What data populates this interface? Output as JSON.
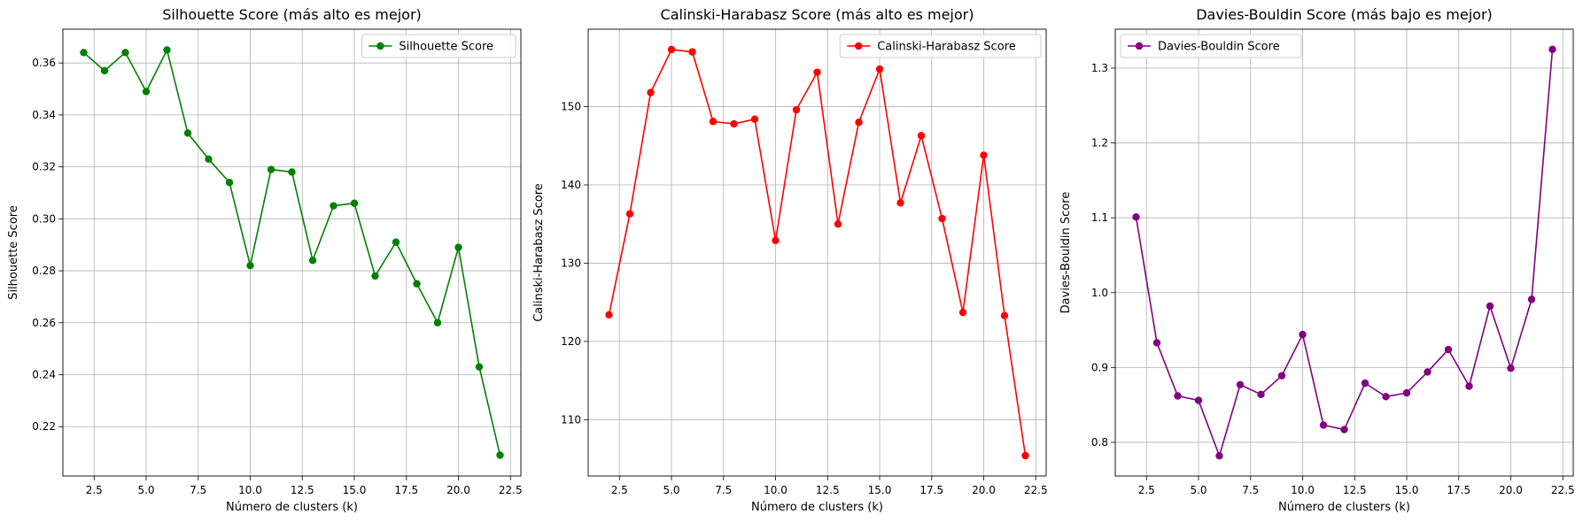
{
  "chart_data": [
    {
      "type": "line",
      "title": "Silhouette Score (más alto es mejor)",
      "xlabel": "Número de clusters (k)",
      "ylabel": "Silhouette Score",
      "x": [
        2,
        3,
        4,
        5,
        6,
        7,
        8,
        9,
        10,
        11,
        12,
        13,
        14,
        15,
        16,
        17,
        18,
        19,
        20,
        21,
        22
      ],
      "series": [
        {
          "name": "Silhouette Score",
          "color": "#008000",
          "values": [
            0.364,
            0.357,
            0.364,
            0.349,
            0.365,
            0.333,
            0.323,
            0.314,
            0.282,
            0.319,
            0.318,
            0.284,
            0.305,
            0.306,
            0.278,
            0.291,
            0.275,
            0.26,
            0.289,
            0.243,
            0.209
          ]
        }
      ],
      "xlim": [
        1,
        23
      ],
      "ylim": [
        0.201,
        0.373
      ],
      "xticks": [
        2.5,
        5.0,
        7.5,
        10.0,
        12.5,
        15.0,
        17.5,
        20.0,
        22.5
      ],
      "xtick_labels": [
        "2.5",
        "5.0",
        "7.5",
        "10.0",
        "12.5",
        "15.0",
        "17.5",
        "20.0",
        "22.5"
      ],
      "yticks": [
        0.22,
        0.24,
        0.26,
        0.28,
        0.3,
        0.32,
        0.34,
        0.36
      ],
      "ytick_labels": [
        "0.22",
        "0.24",
        "0.26",
        "0.28",
        "0.30",
        "0.32",
        "0.34",
        "0.36"
      ],
      "grid": true,
      "legend": "top-right"
    },
    {
      "type": "line",
      "title": "Calinski-Harabasz Score (más alto es mejor)",
      "xlabel": "Número de clusters (k)",
      "ylabel": "Calinski-Harabasz Score",
      "x": [
        2,
        3,
        4,
        5,
        6,
        7,
        8,
        9,
        10,
        11,
        12,
        13,
        14,
        15,
        16,
        17,
        18,
        19,
        20,
        21,
        22
      ],
      "series": [
        {
          "name": "Calinski-Harabasz Score",
          "color": "#ff0000",
          "values": [
            123.4,
            136.3,
            151.8,
            157.3,
            157.0,
            148.1,
            147.8,
            148.4,
            132.9,
            149.6,
            154.4,
            135.0,
            148.0,
            154.8,
            137.7,
            146.3,
            135.7,
            123.7,
            143.8,
            123.3,
            105.4
          ]
        }
      ],
      "xlim": [
        1,
        23
      ],
      "ylim": [
        102.8,
        159.9
      ],
      "xticks": [
        2.5,
        5.0,
        7.5,
        10.0,
        12.5,
        15.0,
        17.5,
        20.0,
        22.5
      ],
      "xtick_labels": [
        "2.5",
        "5.0",
        "7.5",
        "10.0",
        "12.5",
        "15.0",
        "17.5",
        "20.0",
        "22.5"
      ],
      "yticks": [
        110,
        120,
        130,
        140,
        150
      ],
      "ytick_labels": [
        "110",
        "120",
        "130",
        "140",
        "150"
      ],
      "grid": true,
      "legend": "top-right"
    },
    {
      "type": "line",
      "title": "Davies-Bouldin Score (más bajo es mejor)",
      "xlabel": "Número de clusters (k)",
      "ylabel": "Davies-Bouldin Score",
      "x": [
        2,
        3,
        4,
        5,
        6,
        7,
        8,
        9,
        10,
        11,
        12,
        13,
        14,
        15,
        16,
        17,
        18,
        19,
        20,
        21,
        22
      ],
      "series": [
        {
          "name": "Davies-Bouldin Score",
          "color": "#800080",
          "values": [
            1.101,
            0.933,
            0.862,
            0.856,
            0.782,
            0.877,
            0.864,
            0.889,
            0.944,
            0.823,
            0.817,
            0.879,
            0.861,
            0.866,
            0.894,
            0.924,
            0.875,
            0.982,
            0.899,
            0.991,
            1.325
          ]
        }
      ],
      "xlim": [
        1,
        23
      ],
      "ylim": [
        0.755,
        1.352
      ],
      "xticks": [
        2.5,
        5.0,
        7.5,
        10.0,
        12.5,
        15.0,
        17.5,
        20.0,
        22.5
      ],
      "xtick_labels": [
        "2.5",
        "5.0",
        "7.5",
        "10.0",
        "12.5",
        "15.0",
        "17.5",
        "20.0",
        "22.5"
      ],
      "yticks": [
        0.8,
        0.9,
        1.0,
        1.1,
        1.2,
        1.3
      ],
      "ytick_labels": [
        "0.8",
        "0.9",
        "1.0",
        "1.1",
        "1.2",
        "1.3"
      ],
      "grid": true,
      "legend": "top-left"
    }
  ]
}
